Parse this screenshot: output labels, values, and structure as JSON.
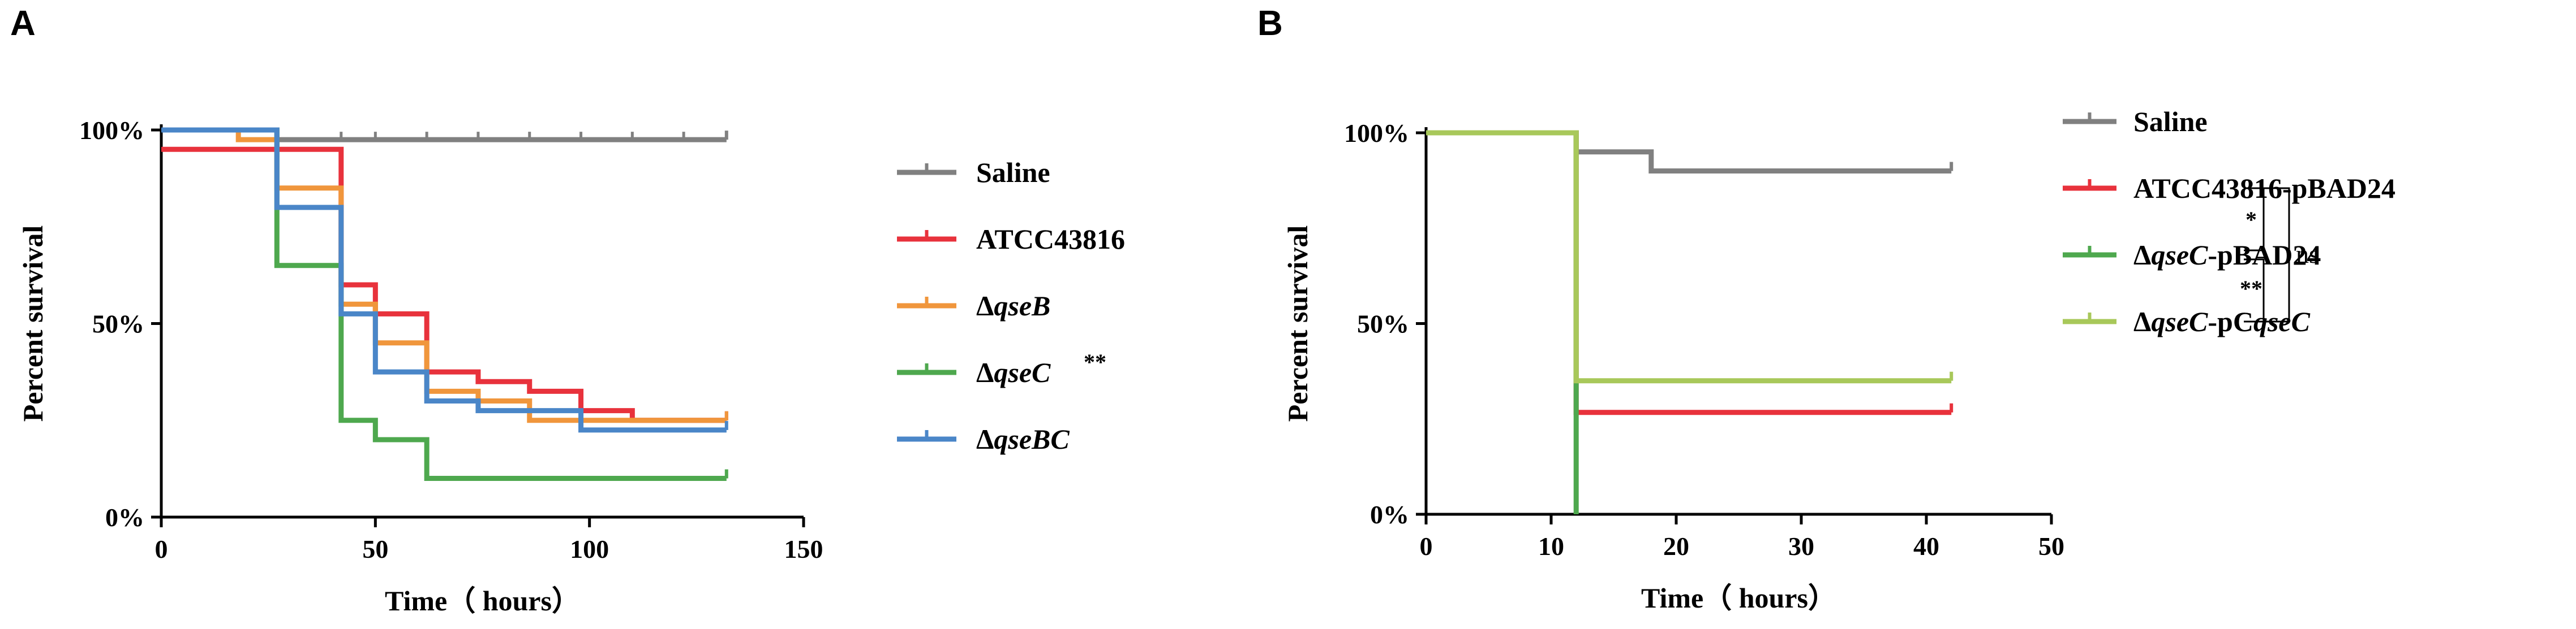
{
  "chart_data": [
    {
      "panel": "A",
      "type": "line",
      "step": true,
      "xlabel": "Time（ hours）",
      "ylabel": "Percent survival",
      "xlim": [
        0,
        150
      ],
      "ylim": [
        0,
        100
      ],
      "x_ticks": [
        0,
        50,
        100,
        150
      ],
      "y_ticks": [
        0,
        50,
        100
      ],
      "y_tick_labels": [
        "0%",
        "50%",
        "100%"
      ],
      "legend_position": "right",
      "series": [
        {
          "name": "Saline",
          "color": "#808080",
          "x": [
            0,
            27,
            132
          ],
          "y": [
            100,
            97.5,
            97.5
          ]
        },
        {
          "name": "ATCC43816",
          "color": "#e8323c",
          "x": [
            0,
            42,
            50,
            62,
            74,
            86,
            98,
            110,
            132
          ],
          "y": [
            95,
            60,
            52.5,
            37.5,
            35,
            32.5,
            27.5,
            25,
            25
          ]
        },
        {
          "name": "ΔqseB",
          "color": "#f0963c",
          "x": [
            0,
            18,
            27,
            42,
            50,
            62,
            74,
            86,
            98,
            132
          ],
          "y": [
            100,
            97.5,
            85,
            55,
            45,
            32.5,
            30,
            25,
            25,
            25
          ]
        },
        {
          "name": "ΔqseC",
          "annotation": "**",
          "color": "#4ea84e",
          "x": [
            0,
            27,
            42,
            50,
            62,
            132
          ],
          "y": [
            100,
            65,
            25,
            20,
            10,
            10
          ]
        },
        {
          "name": "ΔqseBC",
          "color": "#4a86c8",
          "x": [
            0,
            27,
            42,
            50,
            62,
            74,
            98,
            132
          ],
          "y": [
            100,
            80,
            52.5,
            37.5,
            30,
            27.5,
            22.5,
            22.5
          ]
        }
      ],
      "legend": [
        {
          "text": "Saline"
        },
        {
          "text": "ATCC43816"
        },
        {
          "text": "Δ",
          "italic": "qseB"
        },
        {
          "text": "Δ",
          "italic": "qseC"
        },
        {
          "text": "Δ",
          "italic": "qseBC"
        }
      ],
      "significance": [
        {
          "label": "**",
          "series": "ΔqseC"
        }
      ]
    },
    {
      "panel": "B",
      "type": "line",
      "step": true,
      "xlabel": "Time（ hours）",
      "ylabel": "Percent survival",
      "xlim": [
        0,
        50
      ],
      "ylim": [
        0,
        100
      ],
      "x_ticks": [
        0,
        10,
        20,
        30,
        40,
        50
      ],
      "y_ticks": [
        0,
        50,
        100
      ],
      "y_tick_labels": [
        "0%",
        "50%",
        "100%"
      ],
      "legend_position": "right",
      "series": [
        {
          "name": "Saline",
          "color": "#808080",
          "x": [
            0,
            12,
            18,
            42
          ],
          "y": [
            100,
            95,
            90,
            90
          ]
        },
        {
          "name": "ATCC43816-pBAD24",
          "color": "#e8323c",
          "x": [
            0,
            12,
            42
          ],
          "y": [
            100,
            26.7,
            26.7
          ]
        },
        {
          "name": "ΔqseC-pBAD24",
          "color": "#4ea84e",
          "x": [
            0,
            12
          ],
          "y": [
            100,
            0
          ]
        },
        {
          "name": "ΔqseC-pCqseC",
          "color": "#a8c85a",
          "x": [
            0,
            12,
            42
          ],
          "y": [
            100,
            35,
            35
          ]
        }
      ],
      "legend": [
        {
          "text": "Saline"
        },
        {
          "text": "ATCC43816-pBAD24"
        },
        {
          "text": "Δ",
          "italic": "qseC",
          "rest": "-pBAD24"
        },
        {
          "text": "Δ",
          "italic": "qseC",
          "rest": "-pC",
          "italic2": "qseC"
        }
      ],
      "significance": [
        {
          "label": "*",
          "between": [
            "ATCC43816-pBAD24",
            "ΔqseC-pBAD24"
          ]
        },
        {
          "label": "**",
          "between": [
            "ΔqseC-pBAD24",
            "ΔqseC-pCqseC"
          ]
        },
        {
          "label": "ns",
          "between": [
            "ATCC43816-pBAD24",
            "ΔqseC-pCqseC"
          ]
        }
      ]
    }
  ]
}
